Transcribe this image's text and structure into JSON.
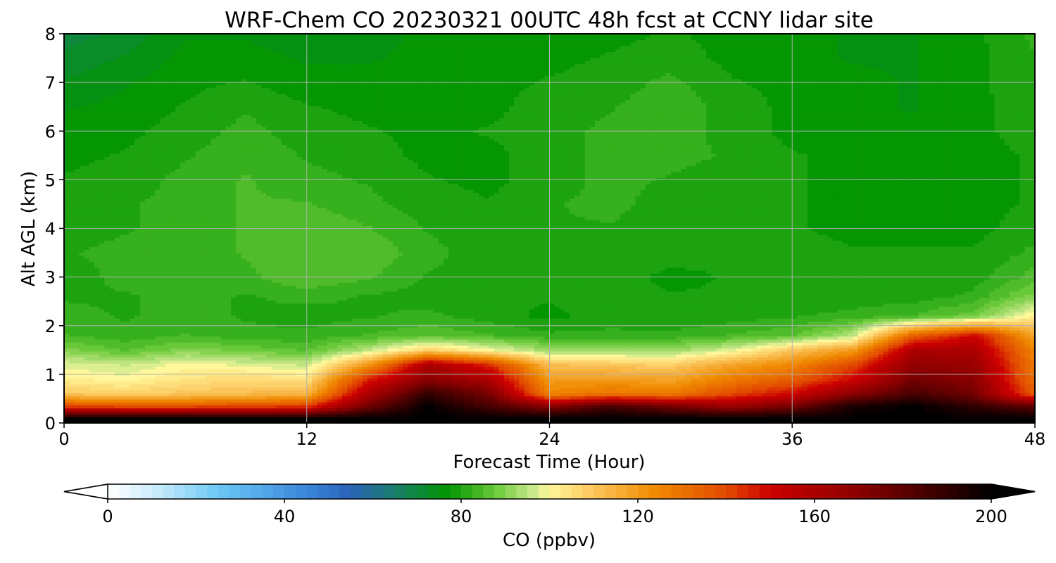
{
  "chart_data": {
    "type": "heatmap",
    "title": "WRF-Chem CO  20230321 00UTC 48h fcst at CCNY lidar site",
    "xlabel": "Forecast Time (Hour)",
    "ylabel": "Alt AGL (km)",
    "xlim": [
      0,
      48
    ],
    "ylim": [
      0,
      8
    ],
    "xticks": [
      0,
      12,
      24,
      36,
      48
    ],
    "yticks": [
      0,
      1,
      2,
      3,
      4,
      5,
      6,
      7,
      8
    ],
    "grid": true,
    "x": [
      0,
      3,
      6,
      9,
      12,
      15,
      18,
      21,
      24,
      27,
      30,
      33,
      36,
      39,
      42,
      45,
      48
    ],
    "y": [
      0.1,
      0.35,
      0.6,
      0.9,
      1.2,
      1.5,
      1.8,
      2.2,
      2.6,
      3,
      3.5,
      4,
      4.5,
      5,
      5.5,
      6,
      6.5,
      7,
      7.5,
      8
    ],
    "z": [
      [
        200,
        200,
        200,
        200,
        200,
        200,
        200,
        200,
        200,
        200,
        200,
        200,
        200,
        200,
        200,
        200,
        200
      ],
      [
        140,
        138,
        138,
        140,
        142,
        175,
        200,
        185,
        170,
        185,
        175,
        165,
        175,
        195,
        200,
        190,
        180
      ],
      [
        110,
        108,
        110,
        112,
        114,
        160,
        190,
        175,
        125,
        130,
        128,
        140,
        150,
        170,
        185,
        175,
        135
      ],
      [
        102,
        100,
        104,
        106,
        104,
        145,
        170,
        160,
        120,
        120,
        118,
        128,
        135,
        150,
        175,
        170,
        130
      ],
      [
        98,
        96,
        100,
        98,
        96,
        120,
        160,
        145,
        112,
        110,
        108,
        118,
        125,
        140,
        168,
        165,
        128
      ],
      [
        90,
        86,
        90,
        88,
        86,
        95,
        108,
        100,
        92,
        92,
        92,
        98,
        110,
        120,
        160,
        160,
        125
      ],
      [
        84,
        82,
        84,
        82,
        82,
        84,
        86,
        84,
        82,
        82,
        82,
        84,
        86,
        95,
        135,
        150,
        118
      ],
      [
        82,
        81,
        82,
        81,
        80,
        81,
        82,
        80,
        78,
        80,
        79,
        80,
        81,
        82,
        84,
        88,
        102
      ],
      [
        81,
        81,
        82,
        81,
        82,
        81,
        80,
        79,
        79,
        80,
        79,
        79,
        80,
        80,
        80,
        82,
        90
      ],
      [
        80,
        82,
        82,
        83,
        86,
        84,
        81,
        80,
        80,
        80,
        78,
        79,
        80,
        80,
        79,
        80,
        85
      ],
      [
        81,
        82,
        82,
        84,
        86,
        86,
        82,
        80,
        80,
        81,
        80,
        79,
        80,
        79,
        79,
        79,
        82
      ],
      [
        80,
        81,
        82,
        84,
        86,
        84,
        81,
        80,
        81,
        81,
        80,
        79,
        79,
        78,
        78,
        78,
        80
      ],
      [
        80,
        81,
        82,
        84,
        84,
        82,
        80,
        79,
        81,
        82,
        80,
        79,
        79,
        78,
        77,
        78,
        79
      ],
      [
        79,
        80,
        82,
        84,
        82,
        81,
        79,
        78,
        80,
        82,
        81,
        80,
        79,
        78,
        78,
        78,
        79
      ],
      [
        78,
        79,
        81,
        83,
        81,
        80,
        78,
        78,
        80,
        82,
        82,
        81,
        79,
        78,
        78,
        78,
        79
      ],
      [
        77,
        78,
        80,
        82,
        80,
        79,
        78,
        79,
        80,
        82,
        83,
        80,
        78,
        77,
        77,
        78,
        80
      ],
      [
        76,
        77,
        79,
        81,
        79,
        78,
        77,
        78,
        80,
        81,
        83,
        80,
        78,
        77,
        76,
        78,
        80
      ],
      [
        74,
        76,
        78,
        79,
        77,
        77,
        77,
        78,
        79,
        80,
        82,
        79,
        78,
        77,
        76,
        78,
        81
      ],
      [
        72,
        74,
        77,
        77,
        76,
        76,
        77,
        78,
        78,
        79,
        80,
        78,
        77,
        76,
        76,
        78,
        81
      ],
      [
        70,
        72,
        76,
        76,
        75,
        75,
        77,
        78,
        78,
        78,
        79,
        78,
        77,
        76,
        76,
        78,
        82
      ]
    ],
    "colorbar": {
      "label": "CO  (ppbv)",
      "range": [
        0,
        200
      ],
      "ticks": [
        0,
        40,
        80,
        120,
        160,
        200
      ],
      "extend": "both",
      "color_stops": [
        {
          "value": 0,
          "color": "#ffffff"
        },
        {
          "value": 10,
          "color": "#cfeefb"
        },
        {
          "value": 25,
          "color": "#6cc8f6"
        },
        {
          "value": 45,
          "color": "#3a86db"
        },
        {
          "value": 55,
          "color": "#2a62b8"
        },
        {
          "value": 65,
          "color": "#1a7f6a"
        },
        {
          "value": 77,
          "color": "#009400"
        },
        {
          "value": 88,
          "color": "#6ecb3c"
        },
        {
          "value": 96,
          "color": "#c6e88a"
        },
        {
          "value": 100,
          "color": "#fff79a"
        },
        {
          "value": 110,
          "color": "#fbc55c"
        },
        {
          "value": 124,
          "color": "#f08a00"
        },
        {
          "value": 140,
          "color": "#e24a00"
        },
        {
          "value": 150,
          "color": "#cc0000"
        },
        {
          "value": 170,
          "color": "#8a0000"
        },
        {
          "value": 190,
          "color": "#300000"
        },
        {
          "value": 200,
          "color": "#000000"
        }
      ]
    }
  }
}
